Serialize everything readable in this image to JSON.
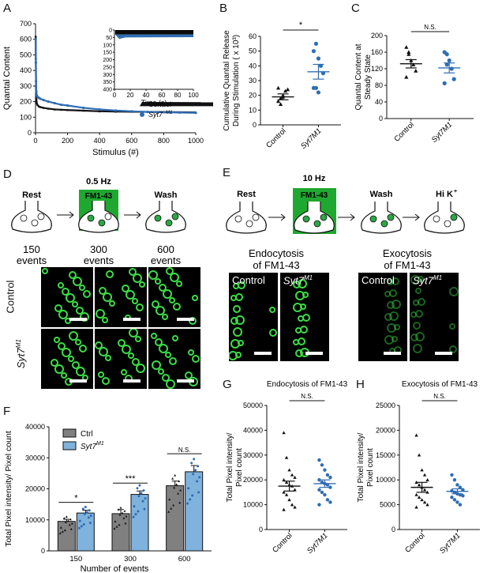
{
  "panel_labels": {
    "A": "A",
    "B": "B",
    "C": "C",
    "D": "D",
    "E": "E",
    "F": "F",
    "G": "G",
    "H": "H"
  },
  "chart_data": [
    {
      "id": "A",
      "type": "scatter",
      "xlabel": "Stimulus (#)",
      "ylabel": "Quantal Content",
      "xlim": [
        0,
        1000
      ],
      "ylim": [
        0,
        700
      ],
      "xticks": [
        0,
        200,
        400,
        600,
        800,
        1000
      ],
      "yticks": [
        0,
        100,
        200,
        300,
        400,
        500,
        600,
        700
      ],
      "series": [
        {
          "name": "Control",
          "color": "#111111",
          "marker": "triangle",
          "x": [
            1,
            2,
            3,
            5,
            8,
            12,
            20,
            30,
            50,
            80,
            120,
            160,
            200,
            300,
            400,
            500,
            600,
            700,
            800,
            900,
            1000
          ],
          "y": [
            620,
            480,
            300,
            220,
            190,
            180,
            170,
            165,
            160,
            155,
            150,
            148,
            146,
            142,
            138,
            136,
            135,
            134,
            133,
            132,
            131
          ]
        },
        {
          "name": "Syt7^M1",
          "color": "#2e6db4",
          "marker": "circle",
          "x": [
            1,
            2,
            3,
            5,
            8,
            12,
            20,
            30,
            50,
            80,
            120,
            160,
            200,
            300,
            400,
            500,
            600,
            700,
            800,
            900,
            1000
          ],
          "y": [
            600,
            450,
            330,
            265,
            240,
            230,
            225,
            218,
            210,
            200,
            190,
            180,
            175,
            160,
            150,
            143,
            138,
            134,
            132,
            130,
            128
          ]
        }
      ],
      "legend": [
        "Control",
        "Syt7",
        "M1"
      ],
      "inset": {
        "xlabel": "Time (s)",
        "xticks": [
          0,
          20,
          40,
          60,
          80,
          100
        ],
        "yticks": [
          0,
          50,
          100,
          150,
          200,
          250,
          300,
          350,
          400
        ],
        "ylim": [
          0,
          400
        ],
        "xlim": [
          0,
          100
        ],
        "y_inverted": true
      }
    },
    {
      "id": "B",
      "type": "scatter",
      "ylabel": "Cumulative Quantal Release During Stimulation ( x 10 3)",
      "ylim": [
        0,
        60
      ],
      "yticks": [
        0,
        10,
        20,
        30,
        40,
        50,
        60
      ],
      "categories": [
        "Control",
        "Syt7M1"
      ],
      "significance": "*",
      "series": [
        {
          "name": "Control",
          "marker": "triangle",
          "color": "#111111",
          "values": [
            16,
            18,
            20,
            23,
            24,
            25,
            14,
            19
          ],
          "mean": 19,
          "sem": 2
        },
        {
          "name": "Syt7M1",
          "marker": "circle",
          "color": "#2e6db4",
          "values": [
            50,
            55,
            45,
            40,
            35,
            25,
            25,
            22
          ],
          "mean": 36,
          "sem": 5
        }
      ]
    },
    {
      "id": "C",
      "type": "scatter",
      "ylabel": "Quantal Content at Steady State",
      "ylim": [
        0,
        200
      ],
      "yticks": [
        0,
        40,
        80,
        120,
        160,
        200
      ],
      "categories": [
        "Control",
        "Syt7M1"
      ],
      "significance": "N.S.",
      "series": [
        {
          "name": "Control",
          "marker": "triangle",
          "color": "#111111",
          "values": [
            172,
            155,
            140,
            130,
            115,
            100,
            160
          ],
          "mean": 132,
          "sem": 10
        },
        {
          "name": "Syt7M1",
          "marker": "circle",
          "color": "#2e6db4",
          "values": [
            160,
            155,
            140,
            120,
            95,
            85,
            130
          ],
          "mean": 122,
          "sem": 12
        }
      ]
    },
    {
      "id": "F",
      "type": "bar",
      "ylabel": "Total Pixel intensity/ Pixel count",
      "xlabel": "Number of events",
      "ylim": [
        0,
        40000
      ],
      "yticks": [
        0,
        10000,
        20000,
        30000,
        40000
      ],
      "categories": [
        "150",
        "300",
        "600"
      ],
      "significance": [
        "*",
        "***",
        "N.S."
      ],
      "legend": [
        "Ctrl",
        "Syt7",
        "M1"
      ],
      "series": [
        {
          "name": "Ctrl",
          "color": "#808080",
          "values": [
            9500,
            12000,
            21000
          ],
          "sem": [
            700,
            1300,
            1500
          ]
        },
        {
          "name": "Syt7M1",
          "color": "#7fb2dc",
          "values": [
            12200,
            18200,
            25500
          ],
          "sem": [
            900,
            1100,
            2000
          ]
        }
      ]
    },
    {
      "id": "G",
      "type": "scatter",
      "title": "Endocytosis of FM1-43",
      "ylabel": "Total Pixel intensity/ Pixel count",
      "ylim": [
        0,
        50000
      ],
      "yticks": [
        0,
        10000,
        20000,
        30000,
        40000,
        50000
      ],
      "categories": [
        "Control",
        "Syt7M1"
      ],
      "significance": "N.S.",
      "series": [
        {
          "name": "Control",
          "marker": "triangle",
          "color": "#111111",
          "values": [
            39000,
            29000,
            24000,
            22000,
            21000,
            20000,
            19000,
            18000,
            17500,
            16000,
            15000,
            14000,
            12000,
            10000,
            9000,
            8000
          ],
          "mean": 17500,
          "sem": 2000
        },
        {
          "name": "Syt7M1",
          "marker": "circle",
          "color": "#2e6db4",
          "values": [
            28000,
            26000,
            24000,
            22000,
            21000,
            20000,
            19000,
            18500,
            18000,
            17000,
            16000,
            15000,
            14000,
            12000,
            11000,
            10000
          ],
          "mean": 18500,
          "sem": 1500
        }
      ]
    },
    {
      "id": "H",
      "type": "scatter",
      "title": "Exocytosis of FM1-43",
      "ylabel": "Total Pixel intensity/ Pixel count",
      "ylim": [
        0,
        25000
      ],
      "yticks": [
        0,
        5000,
        10000,
        15000,
        20000,
        25000
      ],
      "categories": [
        "Control",
        "Syt7M1"
      ],
      "significance": "N.S.",
      "series": [
        {
          "name": "Control",
          "marker": "triangle",
          "color": "#111111",
          "values": [
            19000,
            15000,
            12000,
            11000,
            10000,
            9500,
            9000,
            8500,
            8000,
            7500,
            7000,
            6500,
            6000,
            5500,
            5000,
            4500
          ],
          "mean": 8500,
          "sem": 1000
        },
        {
          "name": "Syt7M1",
          "marker": "circle",
          "color": "#2e6db4",
          "values": [
            11000,
            10000,
            9000,
            8500,
            8000,
            7800,
            7500,
            7200,
            7000,
            6800,
            6500,
            6000,
            5500,
            5000
          ],
          "mean": 7700,
          "sem": 500
        }
      ]
    }
  ],
  "schematic_D": {
    "stages": [
      {
        "title": "Rest",
        "sub": "",
        "events": "150\nevents"
      },
      {
        "title": "0.5 Hz",
        "sub": "FM1-43",
        "events": "300\nevents"
      },
      {
        "title": "Wash",
        "sub": "",
        "events": "600\nevents"
      }
    ],
    "row_labels": [
      "Control",
      "Syt7",
      "M1"
    ]
  },
  "schematic_E": {
    "title": "10 Hz",
    "stages": [
      "Rest",
      "FM1-43",
      "Wash",
      "Hi K",
      "+"
    ],
    "captions": [
      "Endocytosis\nof FM1-43",
      "Exocytosis\nof FM1-43"
    ],
    "image_labels": [
      "Control",
      "Syt7",
      "M1",
      "Control",
      "Syt7",
      "M1"
    ]
  },
  "colors": {
    "control": "#111111",
    "syt7": "#2e6db4",
    "bar_ctrl": "#808080",
    "bar_syt7": "#7fb2dc",
    "green": "#1fa82f"
  }
}
